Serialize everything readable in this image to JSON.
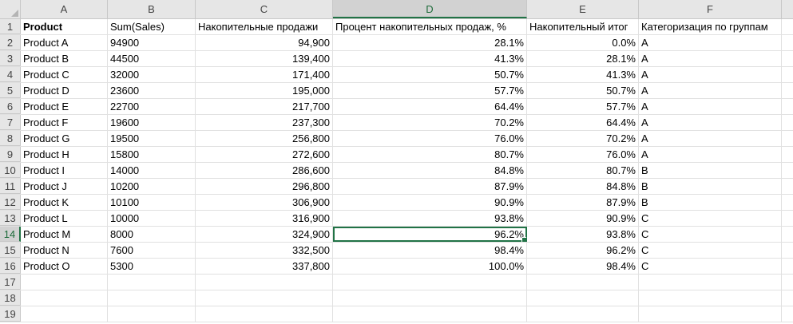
{
  "columns": [
    "A",
    "B",
    "C",
    "D",
    "E",
    "F"
  ],
  "selected_column": "D",
  "selected_row": "14",
  "header_row": {
    "num": "1",
    "cells": [
      "Product",
      "Sum(Sales)",
      "Накопительные продажи",
      "Процент накопительных продаж, %",
      "Накопительный итог",
      "Категоризация по группам"
    ]
  },
  "rows": [
    {
      "num": "2",
      "a": "Product A",
      "b": "94900",
      "c": "94,900",
      "d": "28.1%",
      "e": "0.0%",
      "f": "A"
    },
    {
      "num": "3",
      "a": "Product B",
      "b": "44500",
      "c": "139,400",
      "d": "41.3%",
      "e": "28.1%",
      "f": "A"
    },
    {
      "num": "4",
      "a": "Product C",
      "b": "32000",
      "c": "171,400",
      "d": "50.7%",
      "e": "41.3%",
      "f": "A"
    },
    {
      "num": "5",
      "a": "Product D",
      "b": "23600",
      "c": "195,000",
      "d": "57.7%",
      "e": "50.7%",
      "f": "A"
    },
    {
      "num": "6",
      "a": "Product E",
      "b": "22700",
      "c": "217,700",
      "d": "64.4%",
      "e": "57.7%",
      "f": "A"
    },
    {
      "num": "7",
      "a": "Product F",
      "b": "19600",
      "c": "237,300",
      "d": "70.2%",
      "e": "64.4%",
      "f": "A"
    },
    {
      "num": "8",
      "a": "Product G",
      "b": "19500",
      "c": "256,800",
      "d": "76.0%",
      "e": "70.2%",
      "f": "A"
    },
    {
      "num": "9",
      "a": "Product H",
      "b": "15800",
      "c": "272,600",
      "d": "80.7%",
      "e": "76.0%",
      "f": "A"
    },
    {
      "num": "10",
      "a": "Product I",
      "b": "14000",
      "c": "286,600",
      "d": "84.8%",
      "e": "80.7%",
      "f": "B"
    },
    {
      "num": "11",
      "a": "Product J",
      "b": "10200",
      "c": "296,800",
      "d": "87.9%",
      "e": "84.8%",
      "f": "B"
    },
    {
      "num": "12",
      "a": "Product K",
      "b": "10100",
      "c": "306,900",
      "d": "90.9%",
      "e": "87.9%",
      "f": "B"
    },
    {
      "num": "13",
      "a": "Product L",
      "b": "10000",
      "c": "316,900",
      "d": "93.8%",
      "e": "90.9%",
      "f": "C"
    },
    {
      "num": "14",
      "a": "Product M",
      "b": "8000",
      "c": "324,900",
      "d": "96.2%",
      "e": "93.8%",
      "f": "C"
    },
    {
      "num": "15",
      "a": "Product N",
      "b": "7600",
      "c": "332,500",
      "d": "98.4%",
      "e": "96.2%",
      "f": "C"
    },
    {
      "num": "16",
      "a": "Product O",
      "b": "5300",
      "c": "337,800",
      "d": "100.0%",
      "e": "98.4%",
      "f": "C"
    },
    {
      "num": "17",
      "a": "",
      "b": "",
      "c": "",
      "d": "",
      "e": "",
      "f": ""
    },
    {
      "num": "18",
      "a": "",
      "b": "",
      "c": "",
      "d": "",
      "e": "",
      "f": ""
    },
    {
      "num": "19",
      "a": "",
      "b": "",
      "c": "",
      "d": "",
      "e": "",
      "f": ""
    }
  ]
}
